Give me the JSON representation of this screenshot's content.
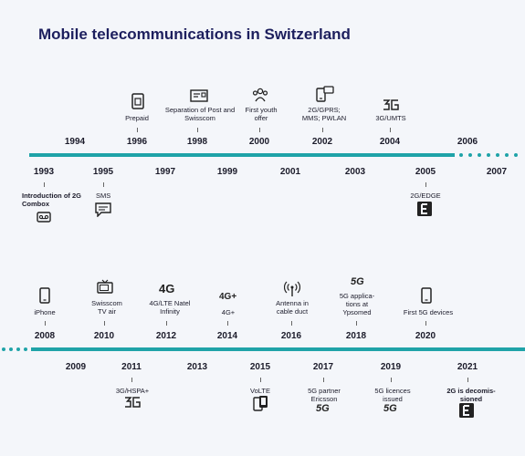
{
  "title": "Mobile telecommunications in Switzerland",
  "timeline1": {
    "top_years": [
      "1994",
      "1996",
      "1998",
      "2000",
      "2002",
      "2004",
      "2006"
    ],
    "bottom_years": [
      "1993",
      "1995",
      "1997",
      "1999",
      "2001",
      "2003",
      "2005",
      "2007"
    ],
    "top_labels": {
      "y1996": "Prepaid",
      "y1998": "Separation of Post and Swisscom",
      "y2000": "First youth offer",
      "y2002": "2G/GPRS; MMS; PWLAN",
      "y2004": "3G/UMTS"
    },
    "bottom_labels": {
      "y1993": "Introduction of 2G Combox",
      "y1995": "SMS",
      "y2005": "2G/EDGE"
    }
  },
  "timeline2": {
    "top_years": [
      "2008",
      "2010",
      "2012",
      "2014",
      "2016",
      "2018",
      "2020"
    ],
    "bottom_years": [
      "2009",
      "2011",
      "2013",
      "2015",
      "2017",
      "2019",
      "2021"
    ],
    "top_labels": {
      "y2008": "iPhone",
      "y2010": "Swisscom TV air",
      "y2012": "4G/LTE Natel Infinity",
      "y2014": "4G+",
      "y2016": "Antenna in cable duct",
      "y2018": "5G applica-tions at Ypsomed",
      "y2020": "First 5G devices"
    },
    "bottom_labels": {
      "y2011": "3G/HSPA+",
      "y2015": "VoLTE",
      "y2017": "5G partner Ericsson",
      "y2019": "5G licences issued",
      "y2021": "2G is decomis-sioned"
    }
  },
  "icon_text": {
    "g4": "4G",
    "g4plus": "4G+",
    "g5": "5G",
    "g5b": "5G",
    "g5c": "5G"
  },
  "icons": [
    "sim-card-icon",
    "post-office-icon",
    "people-icon",
    "phone-message-icon",
    "3g-icon",
    "voicemail-icon",
    "sms-icon",
    "edge-icon",
    "smartphone-icon",
    "tv-icon",
    "antenna-icon",
    "dual-phone-icon"
  ],
  "colors": {
    "timeline": "#1fa3a8",
    "title": "#1d1f5e"
  }
}
